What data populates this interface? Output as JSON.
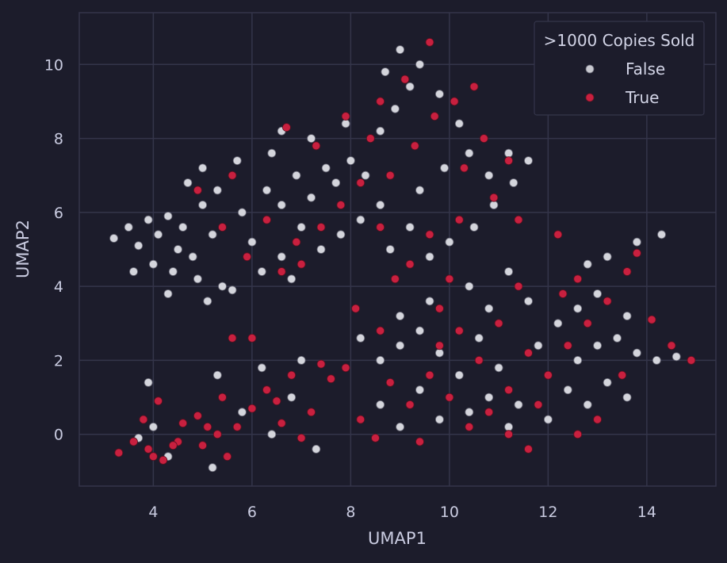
{
  "chart_data": {
    "type": "scatter",
    "title": "",
    "xlabel": "UMAP1",
    "ylabel": "UMAP2",
    "xlim": [
      2.5,
      15.4
    ],
    "ylim": [
      -1.4,
      11.4
    ],
    "xticks": [
      4,
      6,
      8,
      10,
      12,
      14
    ],
    "yticks": [
      0,
      2,
      4,
      6,
      8,
      10
    ],
    "grid": true,
    "legend": {
      "title": ">1000  Copies Sold",
      "position": "top-right",
      "entries": [
        {
          "label": "False",
          "color": "#c8c9d0"
        },
        {
          "label": "True",
          "color": "#c8203f"
        }
      ]
    },
    "series": [
      {
        "name": "False",
        "color": "#d4d5dc",
        "points": [
          [
            3.2,
            5.3
          ],
          [
            3.5,
            5.6
          ],
          [
            3.7,
            5.1
          ],
          [
            3.9,
            5.8
          ],
          [
            4.1,
            5.4
          ],
          [
            4.3,
            5.9
          ],
          [
            4.5,
            5.0
          ],
          [
            4.0,
            4.6
          ],
          [
            4.4,
            4.4
          ],
          [
            4.8,
            4.8
          ],
          [
            4.6,
            5.6
          ],
          [
            5.0,
            6.2
          ],
          [
            5.2,
            5.4
          ],
          [
            4.9,
            4.2
          ],
          [
            5.4,
            4.0
          ],
          [
            5.1,
            3.6
          ],
          [
            5.6,
            3.9
          ],
          [
            5.3,
            6.6
          ],
          [
            5.0,
            7.2
          ],
          [
            4.7,
            6.8
          ],
          [
            5.8,
            6.0
          ],
          [
            6.0,
            5.2
          ],
          [
            6.3,
            6.6
          ],
          [
            6.6,
            6.2
          ],
          [
            6.9,
            7.0
          ],
          [
            7.2,
            6.4
          ],
          [
            7.0,
            5.6
          ],
          [
            6.6,
            4.8
          ],
          [
            6.2,
            4.4
          ],
          [
            6.8,
            4.2
          ],
          [
            7.4,
            5.0
          ],
          [
            7.7,
            6.8
          ],
          [
            8.0,
            7.4
          ],
          [
            8.3,
            7.0
          ],
          [
            8.6,
            6.2
          ],
          [
            8.2,
            5.8
          ],
          [
            7.8,
            5.4
          ],
          [
            8.6,
            8.2
          ],
          [
            8.9,
            8.8
          ],
          [
            9.2,
            9.4
          ],
          [
            9.0,
            10.4
          ],
          [
            9.4,
            10.0
          ],
          [
            8.7,
            9.8
          ],
          [
            9.8,
            9.2
          ],
          [
            10.2,
            8.4
          ],
          [
            10.4,
            7.6
          ],
          [
            10.8,
            7.0
          ],
          [
            11.2,
            7.6
          ],
          [
            11.6,
            7.4
          ],
          [
            11.3,
            6.8
          ],
          [
            10.9,
            6.2
          ],
          [
            10.5,
            5.6
          ],
          [
            10.0,
            5.2
          ],
          [
            9.6,
            4.8
          ],
          [
            9.2,
            5.6
          ],
          [
            8.8,
            5.0
          ],
          [
            9.4,
            6.6
          ],
          [
            9.9,
            7.2
          ],
          [
            7.5,
            7.2
          ],
          [
            6.4,
            7.6
          ],
          [
            5.7,
            7.4
          ],
          [
            7.2,
            8.0
          ],
          [
            7.9,
            8.4
          ],
          [
            6.6,
            8.2
          ],
          [
            8.2,
            2.6
          ],
          [
            8.6,
            2.0
          ],
          [
            9.0,
            2.4
          ],
          [
            9.4,
            2.8
          ],
          [
            9.8,
            2.2
          ],
          [
            10.2,
            1.6
          ],
          [
            8.6,
            0.8
          ],
          [
            9.0,
            0.2
          ],
          [
            9.4,
            1.2
          ],
          [
            9.8,
            0.4
          ],
          [
            10.4,
            0.6
          ],
          [
            10.8,
            1.0
          ],
          [
            11.2,
            0.2
          ],
          [
            11.4,
            0.8
          ],
          [
            11.0,
            1.8
          ],
          [
            10.6,
            2.6
          ],
          [
            11.8,
            2.4
          ],
          [
            12.2,
            3.0
          ],
          [
            12.6,
            3.4
          ],
          [
            13.0,
            3.8
          ],
          [
            13.4,
            2.6
          ],
          [
            13.8,
            2.2
          ],
          [
            14.2,
            2.0
          ],
          [
            14.6,
            2.1
          ],
          [
            12.4,
            1.2
          ],
          [
            12.0,
            0.4
          ],
          [
            12.8,
            0.8
          ],
          [
            13.2,
            1.4
          ],
          [
            13.6,
            1.0
          ],
          [
            12.6,
            2.0
          ],
          [
            13.0,
            2.4
          ],
          [
            13.6,
            3.2
          ],
          [
            13.2,
            4.8
          ],
          [
            13.8,
            5.2
          ],
          [
            14.3,
            5.4
          ],
          [
            12.8,
            4.6
          ],
          [
            11.6,
            3.6
          ],
          [
            11.2,
            4.4
          ],
          [
            10.8,
            3.4
          ],
          [
            10.4,
            4.0
          ],
          [
            9.6,
            3.6
          ],
          [
            9.0,
            3.2
          ],
          [
            4.0,
            0.2
          ],
          [
            4.3,
            -0.6
          ],
          [
            3.9,
            1.4
          ],
          [
            5.3,
            1.6
          ],
          [
            5.8,
            0.6
          ],
          [
            6.4,
            0.0
          ],
          [
            7.3,
            -0.4
          ],
          [
            6.8,
            1.0
          ],
          [
            5.2,
            -0.9
          ],
          [
            3.7,
            -0.1
          ],
          [
            7.0,
            2.0
          ],
          [
            6.2,
            1.8
          ],
          [
            4.3,
            3.8
          ],
          [
            3.6,
            4.4
          ]
        ]
      },
      {
        "name": "True",
        "color": "#c8203f",
        "points": [
          [
            3.3,
            -0.5
          ],
          [
            3.6,
            -0.2
          ],
          [
            3.9,
            -0.4
          ],
          [
            4.2,
            -0.7
          ],
          [
            4.5,
            -0.2
          ],
          [
            3.8,
            0.4
          ],
          [
            4.1,
            0.9
          ],
          [
            4.6,
            0.3
          ],
          [
            5.0,
            -0.3
          ],
          [
            5.3,
            0.0
          ],
          [
            5.5,
            -0.6
          ],
          [
            5.7,
            0.2
          ],
          [
            6.0,
            0.7
          ],
          [
            6.3,
            1.2
          ],
          [
            6.6,
            0.3
          ],
          [
            7.0,
            -0.1
          ],
          [
            7.2,
            0.6
          ],
          [
            6.8,
            1.6
          ],
          [
            7.6,
            1.5
          ],
          [
            5.4,
            1.0
          ],
          [
            4.9,
            0.5
          ],
          [
            5.6,
            2.6
          ],
          [
            6.0,
            2.6
          ],
          [
            6.6,
            4.4
          ],
          [
            7.0,
            4.6
          ],
          [
            5.9,
            4.8
          ],
          [
            5.4,
            5.6
          ],
          [
            4.9,
            6.6
          ],
          [
            5.6,
            7.0
          ],
          [
            6.7,
            8.3
          ],
          [
            7.3,
            7.8
          ],
          [
            7.9,
            8.6
          ],
          [
            8.4,
            8.0
          ],
          [
            8.8,
            7.0
          ],
          [
            9.3,
            7.8
          ],
          [
            9.7,
            8.6
          ],
          [
            10.1,
            9.0
          ],
          [
            10.5,
            9.4
          ],
          [
            9.6,
            10.6
          ],
          [
            9.1,
            9.6
          ],
          [
            8.6,
            9.0
          ],
          [
            10.3,
            7.2
          ],
          [
            10.9,
            6.4
          ],
          [
            11.4,
            5.8
          ],
          [
            11.2,
            7.4
          ],
          [
            10.7,
            8.0
          ],
          [
            10.2,
            5.8
          ],
          [
            9.6,
            5.4
          ],
          [
            9.2,
            4.6
          ],
          [
            8.6,
            5.6
          ],
          [
            8.2,
            6.8
          ],
          [
            7.8,
            6.2
          ],
          [
            7.4,
            5.6
          ],
          [
            6.9,
            5.2
          ],
          [
            6.3,
            5.8
          ],
          [
            8.6,
            2.8
          ],
          [
            8.8,
            1.4
          ],
          [
            9.2,
            0.8
          ],
          [
            9.6,
            1.6
          ],
          [
            10.0,
            1.0
          ],
          [
            10.4,
            0.2
          ],
          [
            10.8,
            0.6
          ],
          [
            11.2,
            1.2
          ],
          [
            10.6,
            2.0
          ],
          [
            10.2,
            2.8
          ],
          [
            9.8,
            3.4
          ],
          [
            11.0,
            3.0
          ],
          [
            11.6,
            2.2
          ],
          [
            12.0,
            1.6
          ],
          [
            12.4,
            2.4
          ],
          [
            12.8,
            3.0
          ],
          [
            13.2,
            3.6
          ],
          [
            13.6,
            4.4
          ],
          [
            12.6,
            4.2
          ],
          [
            12.2,
            5.4
          ],
          [
            13.8,
            4.9
          ],
          [
            14.1,
            3.1
          ],
          [
            14.5,
            2.4
          ],
          [
            14.9,
            2.0
          ],
          [
            13.5,
            1.6
          ],
          [
            13.0,
            0.4
          ],
          [
            12.6,
            0.0
          ],
          [
            11.6,
            -0.4
          ],
          [
            11.2,
            0.0
          ],
          [
            8.2,
            0.4
          ],
          [
            8.5,
            -0.1
          ],
          [
            9.4,
            -0.2
          ],
          [
            7.9,
            1.8
          ],
          [
            8.1,
            3.4
          ],
          [
            8.9,
            4.2
          ],
          [
            10.0,
            4.2
          ],
          [
            11.4,
            4.0
          ],
          [
            12.3,
            3.8
          ],
          [
            11.8,
            0.8
          ],
          [
            9.8,
            2.4
          ],
          [
            4.4,
            -0.3
          ],
          [
            4.0,
            -0.6
          ],
          [
            5.1,
            0.2
          ],
          [
            6.5,
            0.9
          ],
          [
            7.4,
            1.9
          ]
        ]
      }
    ]
  }
}
